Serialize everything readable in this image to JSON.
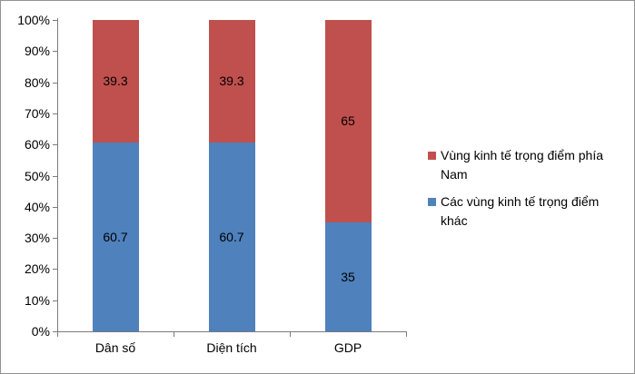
{
  "chart_data": {
    "type": "bar",
    "subtype": "stacked-100",
    "title": "",
    "xlabel": "",
    "ylabel": "",
    "categories": [
      "Dân số",
      "Diện tích",
      "GDP"
    ],
    "series": [
      {
        "name": "Các vùng kinh tế trọng điểm khác",
        "color": "#4F81BD",
        "values": [
          60.7,
          60.7,
          35
        ],
        "data_labels": [
          "60.7",
          "60.7",
          "35"
        ]
      },
      {
        "name": "Vùng kinh tế trọng điểm phía Nam",
        "color": "#C0504D",
        "values": [
          39.3,
          39.3,
          65
        ],
        "data_labels": [
          "39.3",
          "39.3",
          "65"
        ]
      }
    ],
    "y_axis": {
      "min": 0,
      "max": 100,
      "step": 10,
      "tick_labels": [
        "0%",
        "10%",
        "20%",
        "30%",
        "40%",
        "50%",
        "60%",
        "70%",
        "80%",
        "90%",
        "100%"
      ]
    },
    "x_axis": {
      "tick_labels": [
        "Dân số",
        "Diện tích",
        "GDP"
      ]
    },
    "legend": {
      "position": "right",
      "entries": [
        {
          "label": "Vùng kinh tế trọng điểm phía Nam",
          "color": "#C0504D"
        },
        {
          "label": "Các vùng kinh tế trọng điểm khác",
          "color": "#4F81BD"
        }
      ]
    },
    "grid": false,
    "colors": {
      "axis": "#7B7B7B",
      "frame_border": "#939393",
      "label_text": "#000000"
    }
  }
}
